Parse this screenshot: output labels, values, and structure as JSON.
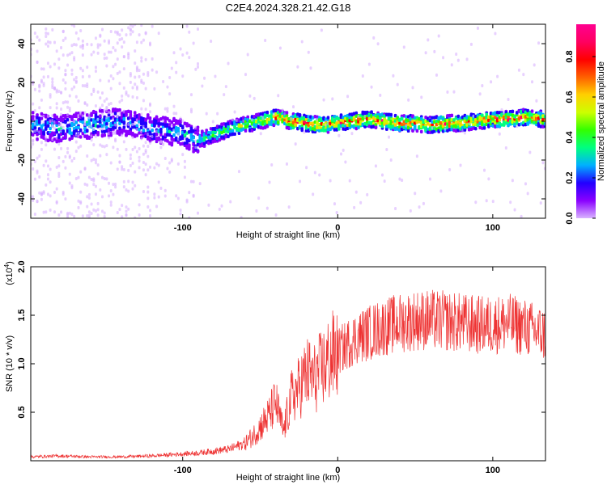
{
  "chart_data": [
    {
      "type": "heatmap",
      "title": "C2E4.2024.328.21.42.G18",
      "xlabel": "Height of straight line (km)",
      "ylabel": "Frequency (Hz)",
      "xlim": [
        -198,
        134
      ],
      "ylim": [
        -50,
        50
      ],
      "xticks": [
        -100,
        0,
        100
      ],
      "yticks": [
        -40,
        -20,
        0,
        20,
        40
      ],
      "colorbar": {
        "label": "Normalized spectral amplitude",
        "range": [
          0,
          0.96
        ],
        "ticks": [
          "0.0",
          "0.2",
          "0.4",
          "0.6",
          "0.8"
        ],
        "tick_values": [
          0,
          0.2,
          0.4,
          0.6,
          0.8
        ],
        "colors": [
          "#d9b3ff",
          "#8a00ff",
          "#2200ff",
          "#00b0ff",
          "#00ff80",
          "#33ff00",
          "#ccff00",
          "#ffd000",
          "#ff6000",
          "#ff0000",
          "#ff0060",
          "#ff0090"
        ]
      },
      "ridge": {
        "x": [
          -198,
          -180,
          -160,
          -140,
          -120,
          -100,
          -90,
          -80,
          -70,
          -60,
          -50,
          -40,
          -30,
          -20,
          -10,
          0,
          10,
          20,
          30,
          40,
          50,
          60,
          70,
          80,
          90,
          100,
          110,
          120,
          134
        ],
        "frequency": [
          -2,
          -4,
          -2,
          0,
          -4,
          -6,
          -10,
          -7,
          -4,
          -2,
          0,
          2,
          0,
          -1,
          -2,
          -1,
          0,
          1,
          0,
          -1,
          -1,
          -2,
          -1,
          -1,
          0,
          1,
          1,
          2,
          1
        ],
        "peak_amplitude": [
          0.3,
          0.3,
          0.35,
          0.3,
          0.3,
          0.3,
          0.35,
          0.45,
          0.5,
          0.55,
          0.55,
          0.75,
          0.85,
          0.9,
          0.85,
          0.8,
          0.85,
          0.75,
          0.85,
          0.8,
          0.7,
          0.75,
          0.85,
          0.8,
          0.7,
          0.8,
          0.85,
          0.8,
          0.7
        ]
      }
    },
    {
      "type": "line",
      "xlabel": "Height of straight line (km)",
      "ylabel": "SNR (10 * v/v)",
      "y_multiplier": "(x10",
      "y_multiplier_exp": "4",
      "xlim": [
        -198,
        134
      ],
      "ylim": [
        0,
        2.0
      ],
      "xticks": [
        -100,
        0,
        100
      ],
      "yticks": [
        "0.5",
        "1.0",
        "1.5",
        "2.0"
      ],
      "ytick_values": [
        0.5,
        1.0,
        1.5,
        2.0
      ],
      "color": "#ee3333",
      "series": [
        {
          "x": [
            -198,
            -180,
            -160,
            -140,
            -120,
            -100,
            -90,
            -80,
            -70,
            -60,
            -55,
            -50,
            -45,
            -40,
            -35,
            -30,
            -25,
            -20,
            -15,
            -10,
            -5,
            0,
            10,
            20,
            30,
            40,
            50,
            60,
            70,
            80,
            90,
            100,
            110,
            120,
            134
          ],
          "y": [
            0.04,
            0.05,
            0.04,
            0.04,
            0.05,
            0.07,
            0.08,
            0.1,
            0.12,
            0.18,
            0.25,
            0.35,
            0.45,
            0.6,
            0.3,
            0.65,
            0.75,
            0.9,
            0.85,
            0.95,
            1.05,
            1.12,
            1.25,
            1.32,
            1.38,
            1.42,
            1.45,
            1.45,
            1.44,
            1.42,
            1.4,
            1.4,
            1.42,
            1.38,
            1.3
          ]
        }
      ]
    }
  ]
}
